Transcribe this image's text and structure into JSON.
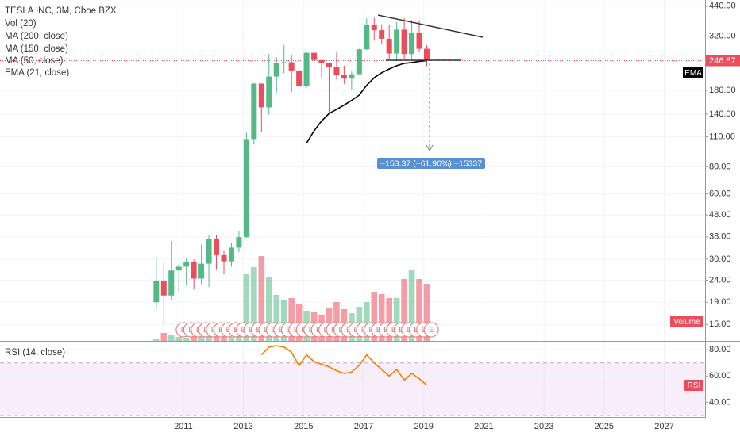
{
  "chart_data": {
    "type": "candlestick",
    "title": "TESLA INC, 3M, Cboe BZX",
    "legend": [
      "Vol (20)",
      "MA (200, close)",
      "MA (150, close)",
      "MA (50, close)",
      "EMA (21, close)"
    ],
    "log_scale": true,
    "grid": true,
    "up_color": "#53b987",
    "down_color": "#eb4d5c",
    "x": [
      2010.1,
      2010.35,
      2010.6,
      2010.85,
      2011.1,
      2011.35,
      2011.6,
      2011.85,
      2012.1,
      2012.35,
      2012.6,
      2012.85,
      2013.1,
      2013.35,
      2013.6,
      2013.85,
      2014.1,
      2014.35,
      2014.6,
      2014.85,
      2015.1,
      2015.35,
      2015.6,
      2015.85,
      2016.1,
      2016.35,
      2016.6,
      2016.85,
      2017.1,
      2017.35,
      2017.6,
      2017.85,
      2018.1,
      2018.35,
      2018.6,
      2018.85,
      2019.1
    ],
    "open": [
      19.0,
      23.9,
      20.4,
      26.6,
      27.7,
      29.1,
      24.4,
      28.6,
      37.2,
      31.3,
      29.3,
      33.9,
      37.9,
      107.4,
      193.4,
      150.4,
      208.5,
      240.1,
      242.7,
      222.4,
      188.8,
      268.3,
      248.4,
      240.0,
      229.8,
      212.3,
      204.0,
      213.7,
      278.3,
      361.6,
      341.1,
      311.4,
      266.1,
      343.0,
      264.8,
      332.8,
      279.9
    ],
    "high": [
      30.4,
      29.0,
      36.4,
      28.5,
      30.4,
      29.9,
      35.0,
      38.8,
      38.7,
      33.0,
      35.5,
      40.4,
      115.0,
      194.5,
      194.0,
      265.0,
      256.0,
      291.0,
      262.0,
      226.0,
      269.7,
      286.6,
      247.0,
      241.0,
      269.0,
      234.0,
      220.0,
      280.0,
      387.0,
      389.6,
      362.8,
      360.5,
      372.0,
      387.5,
      379.5,
      379.0,
      291.0
    ],
    "low": [
      17.5,
      15.0,
      19.5,
      21.1,
      22.7,
      21.7,
      23.0,
      22.3,
      27.0,
      25.5,
      27.7,
      32.3,
      37.6,
      101.3,
      116.0,
      139.0,
      176.0,
      216.0,
      176.9,
      181.0,
      185.0,
      196.0,
      206.0,
      141.0,
      202.0,
      193.0,
      181.0,
      214.0,
      276.0,
      305.0,
      294.0,
      252.0,
      245.0,
      252.0,
      250.6,
      271.3,
      233.0
    ],
    "close": [
      23.9,
      20.4,
      26.6,
      27.7,
      29.1,
      24.4,
      28.6,
      37.2,
      31.3,
      29.3,
      33.9,
      37.9,
      107.4,
      193.4,
      150.4,
      208.5,
      240.1,
      242.7,
      222.4,
      188.8,
      268.3,
      248.4,
      240.0,
      229.8,
      212.3,
      204.0,
      213.7,
      278.3,
      361.6,
      341.1,
      311.4,
      266.1,
      343.0,
      264.8,
      332.8,
      279.9,
      246.87
    ],
    "last_price": 246.87,
    "xlim": [
      2004.9,
      2028.36
    ],
    "xticks": [
      2011,
      2013,
      2015,
      2017,
      2019,
      2021,
      2023,
      2025,
      2027
    ],
    "ylim": [
      12.6,
      470
    ],
    "yticks": [
      {
        "value": 440,
        "label": "440.00"
      },
      {
        "value": 320,
        "label": "320.00"
      },
      {
        "value": 180,
        "label": "180.00"
      },
      {
        "value": 140,
        "label": "140.00"
      },
      {
        "value": 110,
        "label": "110.00"
      },
      {
        "value": 80,
        "label": "80.00"
      },
      {
        "value": 60,
        "label": "60.00"
      },
      {
        "value": 48,
        "label": "48.00"
      },
      {
        "value": 38,
        "label": "38.00"
      },
      {
        "value": 30,
        "label": "30.00"
      },
      {
        "value": 24,
        "label": "24.00"
      },
      {
        "value": 19,
        "label": "19.00"
      },
      {
        "value": 15,
        "label": "15.00"
      }
    ],
    "ema": {
      "label": "EMA",
      "color": "#000000",
      "values": [
        null,
        null,
        null,
        null,
        null,
        null,
        null,
        null,
        null,
        null,
        null,
        null,
        null,
        null,
        null,
        null,
        null,
        null,
        null,
        null,
        103,
        117,
        130,
        141,
        147,
        154,
        162,
        171,
        190,
        206,
        217,
        226,
        234,
        240,
        242,
        245,
        247
      ]
    },
    "volume": {
      "label": "Volume",
      "ylim": [
        0,
        130
      ],
      "values": [
        3,
        10,
        7,
        5,
        4,
        6,
        5,
        8,
        10,
        7,
        5,
        9,
        84,
        93,
        107,
        81,
        58,
        52,
        54,
        46,
        38,
        36,
        33,
        42,
        49,
        40,
        35,
        43,
        49,
        62,
        59,
        54,
        54,
        78,
        90,
        78,
        72
      ]
    },
    "earnings": {
      "label": "E",
      "x": [
        2011.0,
        2011.25,
        2011.5,
        2011.75,
        2012.0,
        2012.25,
        2012.5,
        2012.75,
        2013.0,
        2013.25,
        2013.5,
        2013.75,
        2014.0,
        2014.25,
        2014.5,
        2014.75,
        2015.0,
        2015.25,
        2015.5,
        2015.75,
        2016.0,
        2016.25,
        2016.5,
        2016.75,
        2017.0,
        2017.25,
        2017.5,
        2017.75,
        2018.0,
        2018.25,
        2018.5,
        2018.75,
        2019.0,
        2019.25
      ]
    },
    "measure_label": "−153.37 (−61.96%) −15337",
    "rsi": {
      "title": "RSI (14, close)",
      "label": "RSI",
      "color": "#f57c00",
      "ylim": [
        30,
        85.5
      ],
      "band": [
        30,
        70
      ],
      "yticks": [
        {
          "value": 80,
          "label": "80.00"
        },
        {
          "value": 60,
          "label": "60.00"
        },
        {
          "value": 40,
          "label": "40.00"
        }
      ],
      "values": [
        null,
        null,
        null,
        null,
        null,
        null,
        null,
        null,
        null,
        null,
        null,
        null,
        null,
        null,
        76,
        82,
        83,
        82,
        78,
        68,
        76,
        71,
        69,
        67,
        64,
        62,
        63,
        68,
        76,
        70,
        65,
        60,
        65,
        57,
        62,
        58,
        53
      ]
    }
  }
}
